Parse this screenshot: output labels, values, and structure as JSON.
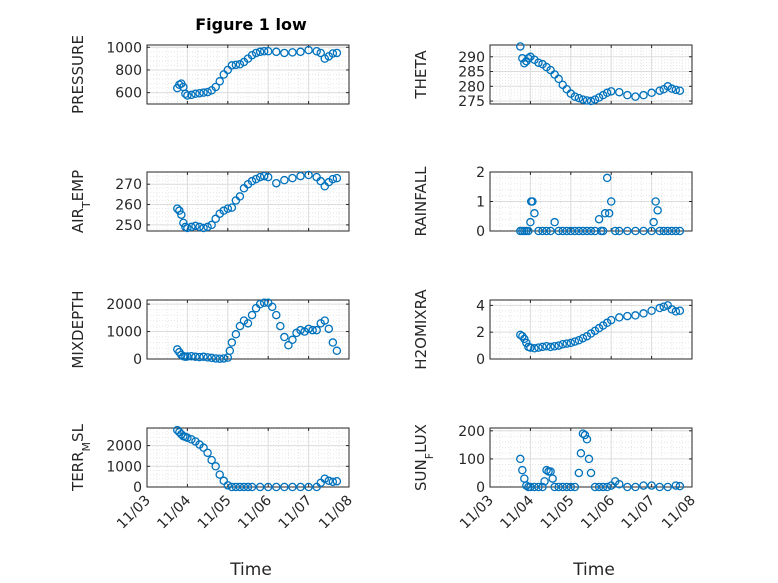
{
  "figure": {
    "title": "Figure 1 low",
    "xlabel": "Time"
  },
  "x_ticks": [
    "11/03",
    "11/04",
    "11/05",
    "11/06",
    "11/07",
    "11/08"
  ],
  "marker_color": "#0072BD",
  "chart_data": [
    {
      "type": "scatter",
      "ylabel": "PRESSURE",
      "xlim": [
        3,
        8
      ],
      "ylim": [
        500,
        1020
      ],
      "yticks": [
        "1000",
        "800",
        "600"
      ],
      "ytick_values": [
        1000,
        800,
        600
      ],
      "grid": true,
      "x": [
        3.75,
        3.8,
        3.85,
        3.9,
        3.95,
        4.0,
        4.1,
        4.2,
        4.3,
        4.4,
        4.5,
        4.6,
        4.7,
        4.8,
        4.9,
        5.0,
        5.1,
        5.2,
        5.3,
        5.4,
        5.5,
        5.6,
        5.7,
        5.8,
        5.9,
        6.0,
        6.2,
        6.4,
        6.6,
        6.8,
        7.0,
        7.2,
        7.3,
        7.4,
        7.5,
        7.6,
        7.7
      ],
      "values": [
        640,
        670,
        680,
        650,
        590,
        575,
        580,
        590,
        595,
        600,
        605,
        620,
        650,
        700,
        760,
        800,
        840,
        845,
        850,
        870,
        900,
        930,
        950,
        960,
        965,
        965,
        960,
        950,
        955,
        960,
        975,
        965,
        950,
        900,
        920,
        945,
        950
      ]
    },
    {
      "type": "scatter",
      "ylabel": "THETA",
      "xlim": [
        3,
        8
      ],
      "ylim": [
        274,
        294
      ],
      "yticks": [
        "290",
        "285",
        "280",
        "275"
      ],
      "ytick_values": [
        290,
        285,
        280,
        275
      ],
      "grid": true,
      "x": [
        3.75,
        3.8,
        3.85,
        3.9,
        3.95,
        4.0,
        4.1,
        4.2,
        4.3,
        4.4,
        4.5,
        4.6,
        4.7,
        4.8,
        4.9,
        5.0,
        5.1,
        5.2,
        5.3,
        5.4,
        5.5,
        5.6,
        5.7,
        5.8,
        5.9,
        6.0,
        6.2,
        6.4,
        6.6,
        6.8,
        7.0,
        7.2,
        7.3,
        7.4,
        7.5,
        7.6,
        7.7
      ],
      "values": [
        293.5,
        289.5,
        287.8,
        288.5,
        289.5,
        290.0,
        289.0,
        288.0,
        287.5,
        286.5,
        285.5,
        284.0,
        282.5,
        280.5,
        279.0,
        277.5,
        276.5,
        276.0,
        275.5,
        275.2,
        275.0,
        275.5,
        276.2,
        277.0,
        277.8,
        278.3,
        278.0,
        277.0,
        276.5,
        277.0,
        277.8,
        278.5,
        279.0,
        280.0,
        279.2,
        278.8,
        278.5
      ]
    },
    {
      "type": "scatter",
      "ylabel": "AIR_TEMP",
      "xlim": [
        3,
        8
      ],
      "ylim": [
        247,
        276
      ],
      "yticks": [
        "270",
        "260",
        "250"
      ],
      "ytick_values": [
        270,
        260,
        250
      ],
      "grid": true,
      "x": [
        3.75,
        3.8,
        3.85,
        3.9,
        3.95,
        4.0,
        4.1,
        4.2,
        4.3,
        4.4,
        4.5,
        4.6,
        4.7,
        4.8,
        4.9,
        5.0,
        5.1,
        5.2,
        5.3,
        5.4,
        5.5,
        5.6,
        5.7,
        5.8,
        5.9,
        6.0,
        6.2,
        6.4,
        6.6,
        6.8,
        7.0,
        7.2,
        7.3,
        7.4,
        7.5,
        7.6,
        7.7
      ],
      "values": [
        258,
        257,
        255,
        251,
        249,
        248.5,
        249,
        249.5,
        249,
        248.5,
        249,
        250,
        253,
        255.5,
        257,
        258,
        258.5,
        262,
        264,
        268,
        270,
        271.5,
        272.5,
        273.5,
        274,
        273.5,
        270.5,
        272,
        273,
        274,
        274.5,
        273.5,
        271.5,
        269,
        271,
        272.5,
        273
      ]
    },
    {
      "type": "scatter",
      "ylabel": "RAINFALL",
      "xlim": [
        3,
        8
      ],
      "ylim": [
        0,
        2
      ],
      "yticks": [
        "2",
        "1",
        "0"
      ],
      "ytick_values": [
        2,
        1,
        0
      ],
      "grid": true,
      "x": [
        3.75,
        3.8,
        3.85,
        3.9,
        3.95,
        4.0,
        4.02,
        4.05,
        4.1,
        4.2,
        4.3,
        4.4,
        4.5,
        4.6,
        4.7,
        4.8,
        4.9,
        5.0,
        5.1,
        5.2,
        5.3,
        5.4,
        5.5,
        5.6,
        5.7,
        5.75,
        5.8,
        5.85,
        5.9,
        5.95,
        6.0,
        6.1,
        6.2,
        6.4,
        6.6,
        6.8,
        7.0,
        7.05,
        7.1,
        7.15,
        7.2,
        7.3,
        7.4,
        7.5,
        7.6,
        7.7
      ],
      "values": [
        0,
        0,
        0,
        0,
        0,
        0.3,
        1.0,
        1.0,
        0.6,
        0,
        0,
        0,
        0,
        0.3,
        0,
        0,
        0,
        0,
        0,
        0,
        0,
        0,
        0,
        0,
        0.4,
        0,
        0,
        0.6,
        1.8,
        0.6,
        1.0,
        0,
        0,
        0,
        0,
        0,
        0,
        0.3,
        1.0,
        0.7,
        0,
        0,
        0,
        0,
        0,
        0
      ]
    },
    {
      "type": "scatter",
      "ylabel": "MIXDEPTH",
      "xlim": [
        3,
        8
      ],
      "ylim": [
        0,
        2150
      ],
      "yticks": [
        "2000",
        "1000",
        "0"
      ],
      "ytick_values": [
        2000,
        1000,
        0
      ],
      "grid": true,
      "x": [
        3.75,
        3.8,
        3.85,
        3.9,
        3.95,
        4.0,
        4.1,
        4.2,
        4.3,
        4.4,
        4.5,
        4.6,
        4.7,
        4.8,
        4.9,
        5.0,
        5.05,
        5.1,
        5.2,
        5.3,
        5.4,
        5.5,
        5.6,
        5.7,
        5.8,
        5.9,
        6.0,
        6.1,
        6.2,
        6.3,
        6.4,
        6.5,
        6.6,
        6.7,
        6.8,
        6.9,
        7.0,
        7.1,
        7.2,
        7.3,
        7.4,
        7.5,
        7.6,
        7.7
      ],
      "values": [
        350,
        250,
        150,
        100,
        80,
        90,
        100,
        80,
        70,
        80,
        60,
        40,
        20,
        10,
        20,
        50,
        300,
        600,
        900,
        1200,
        1400,
        1300,
        1600,
        1850,
        2000,
        2050,
        2050,
        1900,
        1600,
        1200,
        800,
        500,
        700,
        950,
        1050,
        1000,
        1100,
        1050,
        1050,
        1300,
        1400,
        1100,
        600,
        300
      ]
    },
    {
      "type": "scatter",
      "ylabel": "H2OMIXRA",
      "xlim": [
        3,
        8
      ],
      "ylim": [
        0,
        4.4
      ],
      "yticks": [
        "4",
        "2",
        "0"
      ],
      "ytick_values": [
        4,
        2,
        0
      ],
      "grid": true,
      "x": [
        3.75,
        3.8,
        3.85,
        3.9,
        3.95,
        4.0,
        4.1,
        4.2,
        4.3,
        4.4,
        4.5,
        4.6,
        4.7,
        4.8,
        4.9,
        5.0,
        5.1,
        5.2,
        5.3,
        5.4,
        5.5,
        5.6,
        5.7,
        5.8,
        5.9,
        6.0,
        6.2,
        6.4,
        6.6,
        6.8,
        7.0,
        7.2,
        7.3,
        7.4,
        7.5,
        7.6,
        7.7
      ],
      "values": [
        1.8,
        1.7,
        1.5,
        1.2,
        0.9,
        0.85,
        0.8,
        0.85,
        0.9,
        0.95,
        0.9,
        0.95,
        1.0,
        1.1,
        1.15,
        1.2,
        1.3,
        1.4,
        1.55,
        1.7,
        1.9,
        2.1,
        2.3,
        2.5,
        2.7,
        2.9,
        3.1,
        3.2,
        3.25,
        3.4,
        3.6,
        3.8,
        3.9,
        4.0,
        3.7,
        3.55,
        3.6
      ]
    },
    {
      "type": "scatter",
      "ylabel": "TERR_MSL",
      "xlim": [
        3,
        8
      ],
      "ylim": [
        0,
        2850
      ],
      "yticks": [
        "2000",
        "1000",
        "0"
      ],
      "ytick_values": [
        2000,
        1000,
        0
      ],
      "grid": true,
      "x": [
        3.75,
        3.8,
        3.85,
        3.9,
        3.95,
        4.0,
        4.1,
        4.2,
        4.3,
        4.4,
        4.5,
        4.6,
        4.7,
        4.8,
        4.9,
        5.0,
        5.1,
        5.2,
        5.3,
        5.4,
        5.5,
        5.6,
        5.8,
        6.0,
        6.2,
        6.4,
        6.6,
        6.8,
        7.0,
        7.2,
        7.3,
        7.4,
        7.5,
        7.6,
        7.7
      ],
      "values": [
        2750,
        2650,
        2550,
        2450,
        2420,
        2380,
        2300,
        2200,
        2050,
        1900,
        1650,
        1300,
        1000,
        600,
        300,
        80,
        0,
        0,
        0,
        0,
        0,
        0,
        0,
        0,
        0,
        0,
        0,
        0,
        0,
        0,
        200,
        400,
        300,
        250,
        280
      ]
    },
    {
      "type": "scatter",
      "ylabel": "SUN_FLUX",
      "xlim": [
        3,
        8
      ],
      "ylim": [
        0,
        210
      ],
      "yticks": [
        "200",
        "100",
        "0"
      ],
      "ytick_values": [
        200,
        100,
        0
      ],
      "grid": true,
      "x": [
        3.75,
        3.8,
        3.85,
        3.9,
        3.95,
        4.0,
        4.1,
        4.2,
        4.3,
        4.35,
        4.4,
        4.45,
        4.5,
        4.55,
        4.6,
        4.7,
        4.8,
        4.9,
        5.0,
        5.1,
        5.2,
        5.25,
        5.3,
        5.35,
        5.4,
        5.45,
        5.5,
        5.6,
        5.7,
        5.8,
        5.9,
        6.0,
        6.1,
        6.2,
        6.4,
        6.6,
        6.8,
        7.0,
        7.2,
        7.4,
        7.6,
        7.7
      ],
      "values": [
        100,
        60,
        30,
        5,
        0,
        0,
        0,
        0,
        0,
        20,
        60,
        55,
        55,
        30,
        0,
        0,
        0,
        0,
        0,
        0,
        50,
        120,
        190,
        185,
        170,
        100,
        50,
        0,
        0,
        0,
        0,
        5,
        20,
        10,
        0,
        0,
        5,
        5,
        0,
        0,
        5,
        3
      ]
    }
  ]
}
